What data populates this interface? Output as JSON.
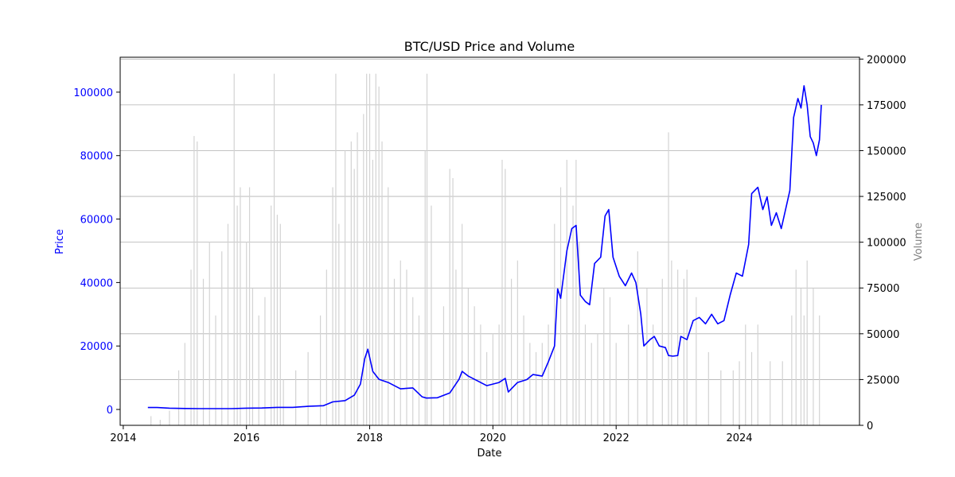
{
  "chart_data": {
    "type": "line",
    "title": "BTC/USD Price and Volume",
    "xlabel": "Date",
    "ylabel": "Price",
    "y2label": "Volume",
    "xlim": [
      2013.95,
      2025.95
    ],
    "ylim": [
      -5000,
      111000
    ],
    "y2lim": [
      0,
      201000
    ],
    "xticks": [
      2014,
      2016,
      2018,
      2020,
      2022,
      2024
    ],
    "yticks": [
      0,
      20000,
      40000,
      60000,
      80000,
      100000
    ],
    "y2ticks": [
      0,
      25000,
      50000,
      75000,
      100000,
      125000,
      150000,
      175000,
      200000
    ],
    "grid": "horizontal (volume axis)",
    "colors": {
      "price": "#0000ff",
      "volume": "#d3d3d3",
      "y2axis_text": "#808080"
    },
    "series": [
      {
        "axis": "left",
        "kind": "line",
        "x": [
          2014.4,
          2014.55,
          2014.75,
          2015.0,
          2015.25,
          2015.5,
          2015.75,
          2016.0,
          2016.25,
          2016.5,
          2016.75,
          2017.0,
          2017.25,
          2017.4,
          2017.6,
          2017.75,
          2017.85,
          2017.92,
          2017.97,
          2018.05,
          2018.15,
          2018.3,
          2018.4,
          2018.5,
          2018.7,
          2018.85,
          2018.92,
          2019.1,
          2019.3,
          2019.45,
          2019.5,
          2019.6,
          2019.75,
          2019.9,
          2020.1,
          2020.2,
          2020.25,
          2020.4,
          2020.55,
          2020.65,
          2020.8,
          2020.9,
          2021.0,
          2021.05,
          2021.1,
          2021.2,
          2021.28,
          2021.35,
          2021.42,
          2021.5,
          2021.57,
          2021.65,
          2021.75,
          2021.82,
          2021.88,
          2021.95,
          2022.05,
          2022.15,
          2022.25,
          2022.32,
          2022.4,
          2022.45,
          2022.55,
          2022.62,
          2022.7,
          2022.8,
          2022.85,
          2022.92,
          2023.0,
          2023.05,
          2023.15,
          2023.25,
          2023.35,
          2023.45,
          2023.55,
          2023.65,
          2023.75,
          2023.85,
          2023.95,
          2024.05,
          2024.15,
          2024.2,
          2024.3,
          2024.38,
          2024.45,
          2024.52,
          2024.6,
          2024.68,
          2024.75,
          2024.82,
          2024.88,
          2024.95,
          2025.0,
          2025.05,
          2025.1,
          2025.15,
          2025.2,
          2025.25,
          2025.3,
          2025.33
        ],
        "y": [
          600,
          600,
          400,
          300,
          250,
          250,
          250,
          400,
          450,
          650,
          650,
          1000,
          1200,
          2400,
          2800,
          4500,
          8000,
          16000,
          19000,
          12000,
          9500,
          8500,
          7500,
          6500,
          6800,
          4000,
          3600,
          3700,
          5200,
          9500,
          12000,
          10500,
          9000,
          7500,
          8500,
          9800,
          5500,
          8500,
          9400,
          11000,
          10500,
          15000,
          20000,
          38000,
          35000,
          50000,
          57000,
          58000,
          36000,
          34000,
          33000,
          46000,
          48000,
          61000,
          63000,
          48000,
          42000,
          39000,
          43000,
          40000,
          30000,
          20000,
          22000,
          23000,
          20000,
          19500,
          17000,
          16800,
          17000,
          23000,
          22000,
          28000,
          29000,
          27000,
          30000,
          27000,
          28000,
          36000,
          43000,
          42000,
          52000,
          68000,
          70000,
          63000,
          67000,
          58000,
          62000,
          57000,
          63000,
          69000,
          92000,
          98000,
          95000,
          102000,
          96000,
          86000,
          84000,
          80000,
          85000,
          96000
        ]
      },
      {
        "axis": "right",
        "kind": "volume-bars",
        "x": [
          2014.45,
          2014.6,
          2014.75,
          2014.9,
          2015.0,
          2015.1,
          2015.15,
          2015.2,
          2015.3,
          2015.4,
          2015.5,
          2015.6,
          2015.7,
          2015.8,
          2015.85,
          2015.9,
          2016.0,
          2016.05,
          2016.1,
          2016.2,
          2016.3,
          2016.4,
          2016.45,
          2016.5,
          2016.55,
          2016.6,
          2016.8,
          2017.0,
          2017.2,
          2017.3,
          2017.4,
          2017.45,
          2017.5,
          2017.6,
          2017.7,
          2017.75,
          2017.8,
          2017.9,
          2017.95,
          2018.0,
          2018.05,
          2018.1,
          2018.15,
          2018.2,
          2018.3,
          2018.4,
          2018.5,
          2018.6,
          2018.7,
          2018.8,
          2018.9,
          2018.93,
          2019.0,
          2019.2,
          2019.3,
          2019.35,
          2019.4,
          2019.5,
          2019.6,
          2019.7,
          2019.8,
          2019.9,
          2020.0,
          2020.1,
          2020.15,
          2020.2,
          2020.3,
          2020.4,
          2020.5,
          2020.6,
          2020.7,
          2020.8,
          2020.9,
          2021.0,
          2021.1,
          2021.2,
          2021.3,
          2021.35,
          2021.4,
          2021.5,
          2021.6,
          2021.7,
          2021.8,
          2021.9,
          2022.0,
          2022.2,
          2022.35,
          2022.5,
          2022.6,
          2022.75,
          2022.85,
          2022.9,
          2023.0,
          2023.1,
          2023.15,
          2023.3,
          2023.5,
          2023.7,
          2023.9,
          2024.0,
          2024.1,
          2024.2,
          2024.3,
          2024.5,
          2024.7,
          2024.85,
          2024.92,
          2025.0,
          2025.05,
          2025.1,
          2025.2,
          2025.3
        ],
        "values": [
          5000,
          3000,
          8000,
          30000,
          45000,
          85000,
          158000,
          155000,
          80000,
          100000,
          60000,
          95000,
          110000,
          192000,
          120000,
          130000,
          100000,
          130000,
          75000,
          60000,
          70000,
          120000,
          192000,
          115000,
          110000,
          25000,
          30000,
          40000,
          60000,
          85000,
          130000,
          192000,
          110000,
          150000,
          155000,
          140000,
          160000,
          170000,
          192000,
          192000,
          145000,
          192000,
          185000,
          155000,
          130000,
          80000,
          90000,
          85000,
          70000,
          60000,
          150000,
          192000,
          120000,
          65000,
          140000,
          135000,
          85000,
          110000,
          75000,
          65000,
          55000,
          40000,
          50000,
          55000,
          145000,
          140000,
          80000,
          90000,
          60000,
          45000,
          40000,
          45000,
          55000,
          110000,
          130000,
          145000,
          120000,
          145000,
          100000,
          55000,
          45000,
          50000,
          75000,
          70000,
          45000,
          55000,
          95000,
          75000,
          55000,
          80000,
          160000,
          90000,
          85000,
          80000,
          85000,
          70000,
          40000,
          30000,
          30000,
          35000,
          55000,
          40000,
          55000,
          35000,
          35000,
          60000,
          85000,
          75000,
          60000,
          90000,
          75000,
          60000
        ]
      }
    ]
  }
}
